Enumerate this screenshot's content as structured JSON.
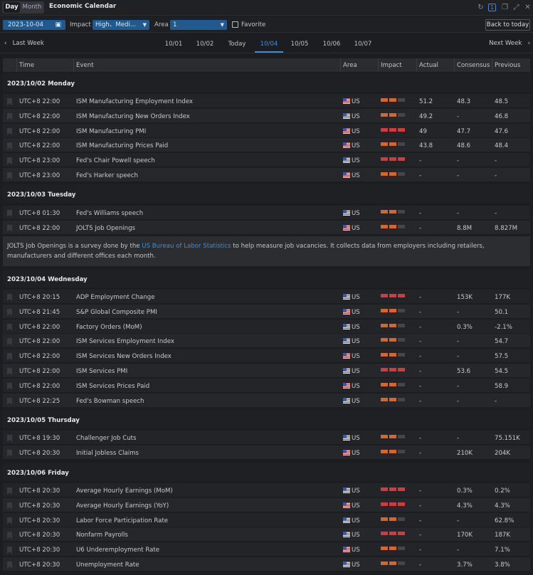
{
  "toolbar": {
    "day_label": "Day",
    "month_label": "Month",
    "title": "Economic Calendar"
  },
  "filters": {
    "date": "2023-10-04",
    "impact_label": "Impact",
    "impact_value": "High、Medi...",
    "area_label": "Area",
    "area_value": "1",
    "favorite_label": "Favorite",
    "back_label": "Back to today"
  },
  "weeknav": {
    "last_week": "Last Week",
    "next_week": "Next Week",
    "tabs": [
      "10/01",
      "10/02",
      "Today",
      "10/04",
      "10/05",
      "10/06",
      "10/07"
    ],
    "active_tab": "10/04"
  },
  "columns": [
    "Time",
    "Event",
    "Area",
    "Impact",
    "Actual",
    "Consensus",
    "Previous"
  ],
  "colors": {
    "accent": "#3b8fd8",
    "high": "#d23a3e",
    "medium": "#d7662e"
  },
  "days": [
    {
      "title": "2023/10/02 Monday",
      "events": [
        {
          "time": "UTC+8 22:00",
          "event": "ISM Manufacturing Employment Index",
          "area": "US",
          "impact": "medium",
          "actual": "51.2",
          "consensus": "48.3",
          "previous": "48.5"
        },
        {
          "time": "UTC+8 22:00",
          "event": "ISM Manufacturing New Orders Index",
          "area": "US",
          "impact": "medium",
          "actual": "49.2",
          "consensus": "-",
          "previous": "46.8"
        },
        {
          "time": "UTC+8 22:00",
          "event": "ISM Manufacturing PMI",
          "area": "US",
          "impact": "high",
          "actual": "49",
          "consensus": "47.7",
          "previous": "47.6"
        },
        {
          "time": "UTC+8 22:00",
          "event": "ISM Manufacturing Prices Paid",
          "area": "US",
          "impact": "medium",
          "actual": "43.8",
          "consensus": "48.6",
          "previous": "48.4"
        },
        {
          "time": "UTC+8 23:00",
          "event": "Fed's Chair Powell speech",
          "area": "US",
          "impact": "high",
          "actual": "-",
          "consensus": "-",
          "previous": "-"
        },
        {
          "time": "UTC+8 23:00",
          "event": "Fed's Harker speech",
          "area": "US",
          "impact": "medium",
          "actual": "-",
          "consensus": "-",
          "previous": "-"
        }
      ]
    },
    {
      "title": "2023/10/03 Tuesday",
      "events": [
        {
          "time": "UTC+8 01:30",
          "event": "Fed's Williams speech",
          "area": "US",
          "impact": "medium",
          "actual": "-",
          "consensus": "-",
          "previous": "-"
        },
        {
          "time": "UTC+8 22:00",
          "event": "JOLTS Job Openings",
          "area": "US",
          "impact": "medium",
          "actual": "-",
          "consensus": "8.8M",
          "previous": "8.827M"
        }
      ],
      "note": {
        "before": "JOLTS Job Openings is a survey done by the ",
        "link": "US Bureau of Labor Statistics",
        "after": " to help measure job vacancies. It collects data from employers including retailers, manufacturers and different offices each month."
      }
    },
    {
      "title": "2023/10/04 Wednesday",
      "events": [
        {
          "time": "UTC+8 20:15",
          "event": "ADP Employment Change",
          "area": "US",
          "impact": "high",
          "actual": "-",
          "consensus": "153K",
          "previous": "177K"
        },
        {
          "time": "UTC+8 21:45",
          "event": "S&P Global Composite PMI",
          "area": "US",
          "impact": "medium",
          "actual": "-",
          "consensus": "-",
          "previous": "50.1"
        },
        {
          "time": "UTC+8 22:00",
          "event": "Factory Orders (MoM)",
          "area": "US",
          "impact": "medium",
          "actual": "-",
          "consensus": "0.3%",
          "previous": "-2.1%"
        },
        {
          "time": "UTC+8 22:00",
          "event": "ISM Services Employment Index",
          "area": "US",
          "impact": "medium",
          "actual": "-",
          "consensus": "-",
          "previous": "54.7"
        },
        {
          "time": "UTC+8 22:00",
          "event": "ISM Services New Orders Index",
          "area": "US",
          "impact": "medium",
          "actual": "-",
          "consensus": "-",
          "previous": "57.5"
        },
        {
          "time": "UTC+8 22:00",
          "event": "ISM Services PMI",
          "area": "US",
          "impact": "high",
          "actual": "-",
          "consensus": "53.6",
          "previous": "54.5"
        },
        {
          "time": "UTC+8 22:00",
          "event": "ISM Services Prices Paid",
          "area": "US",
          "impact": "medium",
          "actual": "-",
          "consensus": "-",
          "previous": "58.9"
        },
        {
          "time": "UTC+8 22:25",
          "event": "Fed's Bowman speech",
          "area": "US",
          "impact": "medium",
          "actual": "-",
          "consensus": "-",
          "previous": "-"
        }
      ]
    },
    {
      "title": "2023/10/05 Thursday",
      "events": [
        {
          "time": "UTC+8 19:30",
          "event": "Challenger Job Cuts",
          "area": "US",
          "impact": "medium",
          "actual": "-",
          "consensus": "-",
          "previous": "75.151K"
        },
        {
          "time": "UTC+8 20:30",
          "event": "Initial Jobless Claims",
          "area": "US",
          "impact": "medium",
          "actual": "-",
          "consensus": "210K",
          "previous": "204K"
        }
      ]
    },
    {
      "title": "2023/10/06 Friday",
      "events": [
        {
          "time": "UTC+8 20:30",
          "event": "Average Hourly Earnings (MoM)",
          "area": "US",
          "impact": "high",
          "actual": "-",
          "consensus": "0.3%",
          "previous": "0.2%"
        },
        {
          "time": "UTC+8 20:30",
          "event": "Average Hourly Earnings (YoY)",
          "area": "US",
          "impact": "high",
          "actual": "-",
          "consensus": "4.3%",
          "previous": "4.3%"
        },
        {
          "time": "UTC+8 20:30",
          "event": "Labor Force Participation Rate",
          "area": "US",
          "impact": "medium",
          "actual": "-",
          "consensus": "-",
          "previous": "62.8%"
        },
        {
          "time": "UTC+8 20:30",
          "event": "Nonfarm Payrolls",
          "area": "US",
          "impact": "high",
          "actual": "-",
          "consensus": "170K",
          "previous": "187K"
        },
        {
          "time": "UTC+8 20:30",
          "event": "U6 Underemployment Rate",
          "area": "US",
          "impact": "medium",
          "actual": "-",
          "consensus": "-",
          "previous": "7.1%"
        },
        {
          "time": "UTC+8 20:30",
          "event": "Unemployment Rate",
          "area": "US",
          "impact": "medium",
          "actual": "-",
          "consensus": "3.7%",
          "previous": "3.8%"
        }
      ]
    }
  ]
}
